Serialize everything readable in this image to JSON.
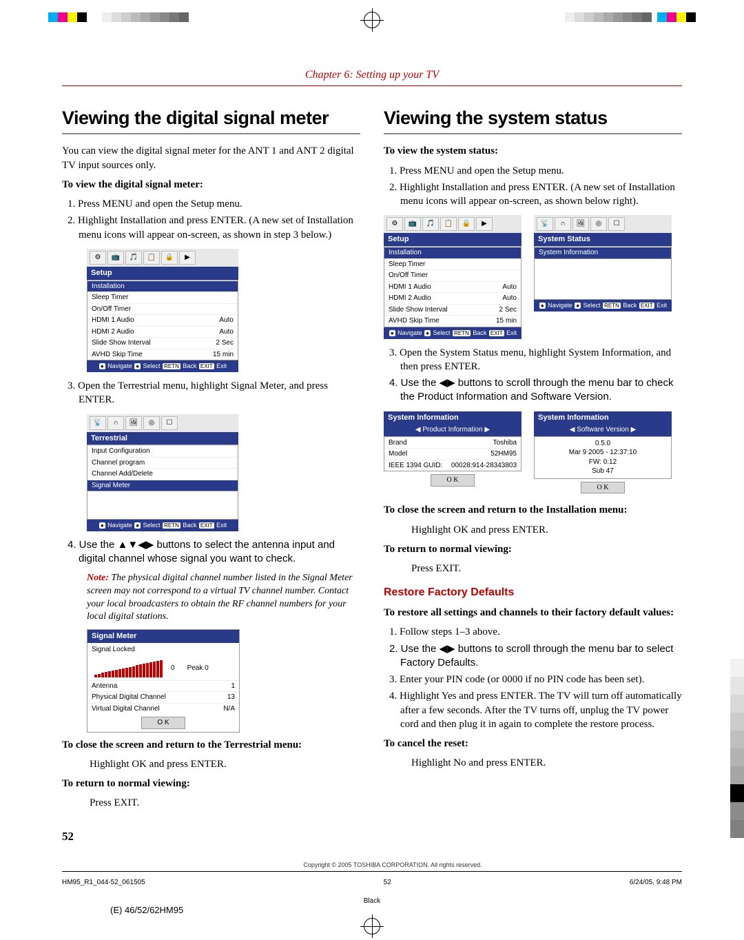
{
  "chapter": "Chapter 6: Setting up your TV",
  "left": {
    "h1": "Viewing the digital signal meter",
    "intro": "You can view the digital signal meter for the ANT 1 and ANT 2 digital TV input sources only.",
    "sub1": "To view the digital signal meter:",
    "s1": "1. Press MENU and open the Setup menu.",
    "s2": "2. Highlight Installation and press ENTER. (A new set of Installation menu icons will appear on-screen, as shown in step 3 below.)",
    "s3": "3. Open the Terrestrial menu, highlight Signal Meter, and press ENTER.",
    "s4": "4. Use the ▲▼◀▶ buttons to select the antenna input and digital channel whose signal you want to check.",
    "note": "The physical digital channel number listed in the Signal Meter screen may not correspond to a virtual TV channel number. Contact your local broadcasters to obtain the RF channel numbers for your local digital stations.",
    "close_h": "To close the screen and return to the Terrestrial menu:",
    "close_t": "Highlight OK and press ENTER.",
    "ret_h": "To return to normal viewing:",
    "ret_t": "Press EXIT.",
    "setup_menu": {
      "title": "Setup",
      "rows": [
        {
          "l": "Installation",
          "r": "",
          "sel": true
        },
        {
          "l": "Sleep Timer",
          "r": ""
        },
        {
          "l": "On/Off Timer",
          "r": ""
        },
        {
          "l": "HDMI 1 Audio",
          "r": "Auto"
        },
        {
          "l": "HDMI 2 Audio",
          "r": "Auto"
        },
        {
          "l": "Slide Show Interval",
          "r": "2 Sec"
        },
        {
          "l": "AVHD Skip Time",
          "r": "15 min"
        }
      ]
    },
    "terr_menu": {
      "title": "Terrestrial",
      "rows": [
        {
          "l": "Input Configuration",
          "r": ""
        },
        {
          "l": "Channel program",
          "r": ""
        },
        {
          "l": "Channel Add/Delete",
          "r": ""
        },
        {
          "l": "Signal Meter",
          "r": "",
          "sel": true
        }
      ]
    },
    "sig": {
      "title": "Signal Meter",
      "locked": "Signal Locked",
      "val": "0",
      "peak": "Peak   0",
      "rows": [
        {
          "l": "Antenna",
          "r": "1"
        },
        {
          "l": "Physical Digital Channel",
          "r": "13"
        },
        {
          "l": "Virtual Digital Channel",
          "r": "N/A"
        }
      ],
      "ok": "O K"
    }
  },
  "right": {
    "h1": "Viewing the system status",
    "sub1": "To view the system status:",
    "s1": "1. Press MENU and open the Setup menu.",
    "s2": "2. Highlight Installation and press ENTER. (A new set of Installation menu icons will appear on-screen, as shown below right).",
    "s3": "3. Open the System Status menu, highlight System Information, and then press ENTER.",
    "s4": "4. Use the ◀▶ buttons to scroll through the menu bar to check the Product Information and Software Version.",
    "close_h": "To close the screen and return to the Installation menu:",
    "close_t": "Highlight OK and press ENTER.",
    "ret_h": "To return to normal viewing:",
    "ret_t": "Press EXIT.",
    "restore_h": "Restore Factory Defaults",
    "restore_sub": "To restore all settings and channels to their factory default values:",
    "r1": "1. Follow steps 1–3 above.",
    "r2": "2. Use the ◀▶ buttons to scroll through the menu bar to select Factory Defaults.",
    "r3": "3. Enter your PIN code (or 0000 if no PIN code has been set).",
    "r4": "4. Highlight Yes and press ENTER. The TV will turn off automatically after a few seconds. After the TV turns off, unplug the TV power cord and then plug it in again to complete the restore process.",
    "cancel_h": "To cancel the reset:",
    "cancel_t": "Highlight No and press ENTER.",
    "status_menu": {
      "title": "System Status",
      "rows": [
        {
          "l": "System Information",
          "r": "",
          "sel": true
        }
      ]
    },
    "pi": {
      "title": "System Information",
      "tab": "Product Information",
      "rows": [
        {
          "l": "Brand",
          "r": "Toshiba"
        },
        {
          "l": "Model",
          "r": "52HM95"
        },
        {
          "l": "IEEE 1394 GUID:",
          "r": "00028:914-28343803"
        }
      ],
      "ok": "O K"
    },
    "sv": {
      "title": "System Information",
      "tab": "Software Version",
      "lines": [
        "0.5.0",
        "Mar 9 2005 - 12:37:10",
        "FW: 0.12",
        "Sub 47"
      ],
      "ok": "O K"
    }
  },
  "nav": "Navigate   Select   Back   Exit",
  "page_num": "52",
  "copyright": "Copyright © 2005 TOSHIBA CORPORATION. All rights reserved.",
  "foot_l": "HM95_R1_044-52_061505",
  "foot_c": "52",
  "foot_r": "6/24/05, 9:48 PM",
  "black": "Black",
  "model": "(E) 46/52/62HM95",
  "reg_colors": [
    "#00aeef",
    "#ec008c",
    "#fff200",
    "#000000"
  ],
  "gray_steps": [
    "#ffffff",
    "#eeeeee",
    "#dddddd",
    "#cccccc",
    "#bbbbbb",
    "#aaaaaa",
    "#999999",
    "#888888",
    "#777777",
    "#666666"
  ],
  "side_colors": [
    "#ffffff",
    "#f2f2f2",
    "#e5e5e5",
    "#d9d9d9",
    "#cccccc",
    "#bfbfbf",
    "#b3b3b3",
    "#a6a6a6",
    "#000000",
    "#8c8c8c",
    "#808080"
  ]
}
